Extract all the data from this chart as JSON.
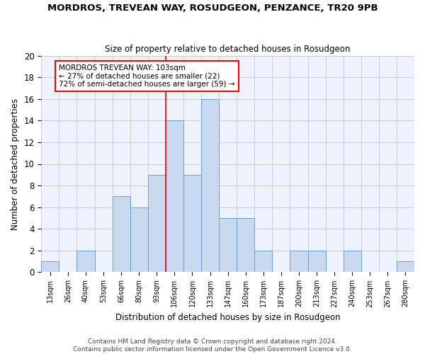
{
  "title": "MORDROS, TREVEAN WAY, ROSUDGEON, PENZANCE, TR20 9PB",
  "subtitle": "Size of property relative to detached houses in Rosudgeon",
  "xlabel": "Distribution of detached houses by size in Rosudgeon",
  "ylabel": "Number of detached properties",
  "categories": [
    "13sqm",
    "26sqm",
    "40sqm",
    "53sqm",
    "66sqm",
    "80sqm",
    "93sqm",
    "106sqm",
    "120sqm",
    "133sqm",
    "147sqm",
    "160sqm",
    "173sqm",
    "187sqm",
    "200sqm",
    "213sqm",
    "227sqm",
    "240sqm",
    "253sqm",
    "267sqm",
    "280sqm"
  ],
  "values": [
    1,
    0,
    2,
    0,
    7,
    6,
    9,
    14,
    9,
    16,
    5,
    5,
    2,
    0,
    2,
    2,
    0,
    2,
    0,
    0,
    1
  ],
  "bar_color": "#c9daf0",
  "bar_edge_color": "#6a9fd8",
  "grid_color": "#cccccc",
  "annotation_text_line1": "MORDROS TREVEAN WAY: 103sqm",
  "annotation_text_line2": "← 27% of detached houses are smaller (22)",
  "annotation_text_line3": "72% of semi-detached houses are larger (59) →",
  "annotation_box_edge_color": "red",
  "vline_x_index": 6.5,
  "vline_color": "red",
  "ylim": [
    0,
    20
  ],
  "yticks": [
    0,
    2,
    4,
    6,
    8,
    10,
    12,
    14,
    16,
    18,
    20
  ],
  "footer": "Contains HM Land Registry data © Crown copyright and database right 2024.\nContains public sector information licensed under the Open Government Licence v3.0.",
  "background_color": "#edf2fc"
}
